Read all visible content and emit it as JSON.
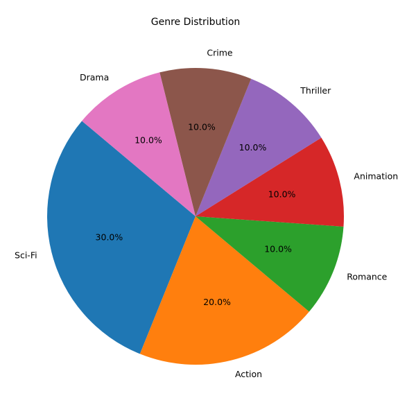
{
  "chart_data": {
    "type": "pie",
    "title": "Genre Distribution",
    "start_angle": 140,
    "direction": "counterclockwise",
    "autopct": "%1.1f%%",
    "slices": [
      {
        "label": "Sci-Fi",
        "value": 30.0,
        "pct_label": "30.0%",
        "color": "#1f77b4"
      },
      {
        "label": "Action",
        "value": 20.0,
        "pct_label": "20.0%",
        "color": "#ff7f0e"
      },
      {
        "label": "Romance",
        "value": 10.0,
        "pct_label": "10.0%",
        "color": "#2ca02c"
      },
      {
        "label": "Animation",
        "value": 10.0,
        "pct_label": "10.0%",
        "color": "#d62728"
      },
      {
        "label": "Thriller",
        "value": 10.0,
        "pct_label": "10.0%",
        "color": "#9467bd"
      },
      {
        "label": "Crime",
        "value": 10.0,
        "pct_label": "10.0%",
        "color": "#8c564b"
      },
      {
        "label": "Drama",
        "value": 10.0,
        "pct_label": "10.0%",
        "color": "#e377c2"
      }
    ]
  }
}
